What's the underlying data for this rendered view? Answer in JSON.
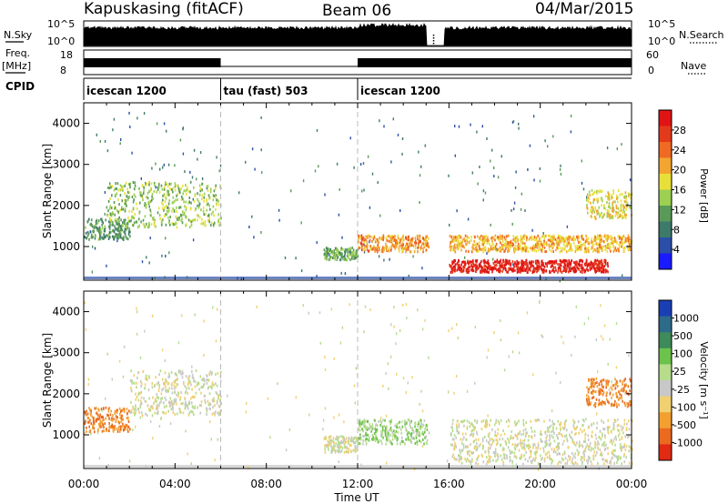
{
  "header": {
    "station": "Kapuskasing (fitACF)",
    "beam": "Beam 06",
    "date": "04/Mar/2015"
  },
  "aux": {
    "nsky_label": "N.Sky",
    "nsky_ticks": [
      "10^5",
      "10^0"
    ],
    "nsearch_label": "N.Search",
    "nsearch_ticks": [
      "10^5",
      "10^0"
    ],
    "freq_label": "Freq.",
    "freq_unit": "[MHz]",
    "freq_ticks": [
      "18",
      "8"
    ],
    "nave_label": "Nave",
    "nave_ticks": [
      "60",
      "0"
    ],
    "cpid_label": "CPID"
  },
  "cpid": [
    {
      "label": "icescan 1200",
      "start": 0,
      "end": 6
    },
    {
      "label": "tau (fast) 503",
      "start": 6,
      "end": 12
    },
    {
      "label": "icescan 1200",
      "start": 12,
      "end": 24
    }
  ],
  "axes": {
    "xlabel": "Time UT",
    "ylabel": "Slant Range [km]",
    "xlim": [
      0,
      24
    ],
    "ylim": [
      180,
      4500
    ],
    "xticks": [
      "00:00",
      "04:00",
      "08:00",
      "12:00",
      "16:00",
      "20:00",
      "00:00"
    ],
    "yticks": [
      1000,
      2000,
      3000,
      4000
    ]
  },
  "colorbars": {
    "power": {
      "label": "Power [dB]",
      "ticks": [
        "28",
        "24",
        "20",
        "16",
        "12",
        "8",
        "4"
      ],
      "colors": [
        "#1a1aff",
        "#2b4fa8",
        "#3d7a6a",
        "#5a9a58",
        "#9ccf52",
        "#e8e03a",
        "#f3a530",
        "#ef6a22",
        "#e43a1c",
        "#e01414"
      ]
    },
    "velocity": {
      "label": "Velocity [m s⁻¹]",
      "ticks": [
        "1000",
        "500",
        "100",
        "25",
        "-25",
        "-100",
        "-500",
        "-1000"
      ],
      "colors": [
        "#1a3fb4",
        "#2e6a8a",
        "#3f8a5a",
        "#6cc24a",
        "#b6dc8c",
        "#c8c8c8",
        "#f0d070",
        "#f3a030",
        "#ea6a20",
        "#e02a14"
      ]
    }
  },
  "chart_data": [
    {
      "type": "heatmap",
      "title": "Power",
      "xlabel": "Time UT",
      "ylabel": "Slant Range [km]",
      "xlim": [
        0,
        24
      ],
      "ylim": [
        180,
        4500
      ],
      "colorbar": "Power [dB]",
      "features": [
        {
          "t": [
            0.0,
            2.0
          ],
          "r": [
            1200,
            1700
          ],
          "level_db": 10
        },
        {
          "t": [
            1.0,
            6.0
          ],
          "r": [
            1500,
            2600
          ],
          "level_db": 14
        },
        {
          "t": [
            10.5,
            12.0
          ],
          "r": [
            700,
            1000
          ],
          "level_db": 12
        },
        {
          "t": [
            12.0,
            15.2
          ],
          "r": [
            900,
            1300
          ],
          "level_db": 22
        },
        {
          "t": [
            16.0,
            23.0
          ],
          "r": [
            400,
            700
          ],
          "level_db": 30
        },
        {
          "t": [
            16.0,
            24.0
          ],
          "r": [
            900,
            1300
          ],
          "level_db": 20
        },
        {
          "t": [
            22.0,
            24.0
          ],
          "r": [
            1700,
            2400
          ],
          "level_db": 18
        }
      ]
    },
    {
      "type": "heatmap",
      "title": "Velocity",
      "xlabel": "Time UT",
      "ylabel": "Slant Range [km]",
      "xlim": [
        0,
        24
      ],
      "ylim": [
        180,
        4500
      ],
      "colorbar": "Velocity [m s⁻¹]",
      "features": [
        {
          "t": [
            0.0,
            2.0
          ],
          "r": [
            1100,
            1700
          ],
          "velocity": -300
        },
        {
          "t": [
            2.0,
            6.0
          ],
          "r": [
            1500,
            2600
          ],
          "velocity": 0
        },
        {
          "t": [
            10.5,
            12.0
          ],
          "r": [
            600,
            1000
          ],
          "velocity": 0
        },
        {
          "t": [
            12.0,
            15.2
          ],
          "r": [
            800,
            1400
          ],
          "velocity": 80
        },
        {
          "t": [
            16.0,
            24.0
          ],
          "r": [
            300,
            1400
          ],
          "velocity": 0
        },
        {
          "t": [
            22.0,
            24.0
          ],
          "r": [
            1700,
            2400
          ],
          "velocity": -300
        }
      ]
    }
  ]
}
